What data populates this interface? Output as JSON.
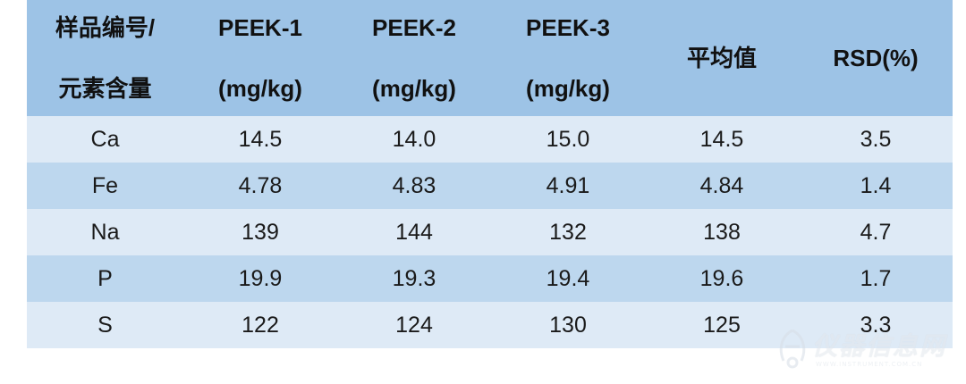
{
  "table": {
    "headers": [
      {
        "line1": "样品编号/",
        "line2": "元素含量"
      },
      {
        "line1": "PEEK-1",
        "line2": "(mg/kg)"
      },
      {
        "line1": "PEEK-2",
        "line2": "(mg/kg)"
      },
      {
        "line1": "PEEK-3",
        "line2": "(mg/kg)"
      },
      {
        "line1": "平均值",
        "line2": ""
      },
      {
        "line1": "RSD(%)",
        "line2": ""
      }
    ],
    "rows": [
      [
        "Ca",
        "14.5",
        "14.0",
        "15.0",
        "14.5",
        "3.5"
      ],
      [
        "Fe",
        "4.78",
        "4.83",
        "4.91",
        "4.84",
        "1.4"
      ],
      [
        "Na",
        "139",
        "144",
        "132",
        "138",
        "4.7"
      ],
      [
        "P",
        "19.9",
        "19.3",
        "19.4",
        "19.6",
        "1.7"
      ],
      [
        "S",
        "122",
        "124",
        "130",
        "125",
        "3.3"
      ]
    ]
  },
  "colors": {
    "header_bg": "#9dc3e6",
    "row_light": "#deeaf6",
    "row_dark": "#bdd7ee"
  },
  "watermark": {
    "icon": "instrument-logo-icon",
    "text": "仪器信息网",
    "subtext": "WWW.INSTRUMENT.COM.CN"
  }
}
